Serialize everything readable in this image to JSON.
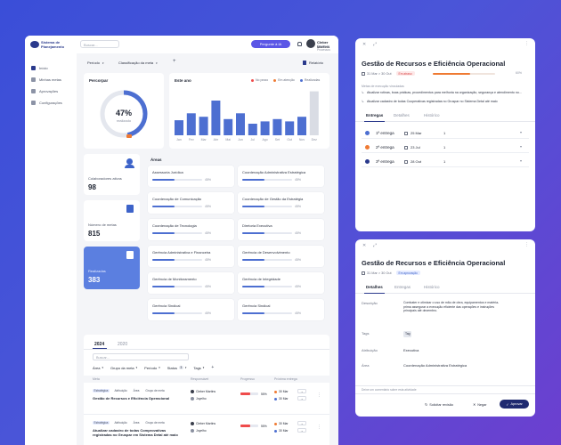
{
  "sidebar": {
    "logo_text": "Sistema de Planejamento",
    "items": [
      {
        "label": "Início"
      },
      {
        "label": "Minhas metas"
      },
      {
        "label": "Aprovações"
      },
      {
        "label": "Configurações"
      }
    ]
  },
  "topbar": {
    "search_placeholder": "Buscar...",
    "ai_button": "Pergunte à IA",
    "user_name": "Cleber Martins",
    "user_role": "Gestor de Processos"
  },
  "filters": {
    "period": "Período",
    "classification": "Classificação da meta",
    "add": "+",
    "report": "Relatório"
  },
  "overview": {
    "title": "Percorpar",
    "percent_label": "47%",
    "percent_sub": "realizado",
    "progress": 0.47,
    "bars_title": "Este ano",
    "legend": [
      "No prazo",
      "Em atenção",
      "Realizadas"
    ],
    "months": [
      "Jan",
      "Fev",
      "Mar",
      "Abr",
      "Mai",
      "Jun",
      "Jul",
      "Ago",
      "Set",
      "Out",
      "Nov",
      "Dez"
    ],
    "values": [
      13,
      19,
      16,
      30,
      14,
      19,
      10,
      12,
      14,
      12,
      16,
      38
    ]
  },
  "stats": {
    "collaborators_label": "Colaboradores ativos",
    "collaborators_value": "98",
    "goals_label": "Número de metas",
    "goals_value": "815",
    "done_label": "Realizadas",
    "done_value": "383"
  },
  "areas": {
    "title": "Áreas",
    "items": [
      {
        "name": "Assessoria Jurídica",
        "pct": "45%",
        "v": 0.45
      },
      {
        "name": "Coordenação Administrativa Estratégica",
        "pct": "45%",
        "v": 0.45
      },
      {
        "name": "Coordenação de Comunicação",
        "pct": "45%",
        "v": 0.45
      },
      {
        "name": "Coordenação de Gestão da Estratégia",
        "pct": "45%",
        "v": 0.45
      },
      {
        "name": "Coordenação de Tecnologia",
        "pct": "45%",
        "v": 0.45
      },
      {
        "name": "Diretoria Executiva",
        "pct": "45%",
        "v": 0.45
      },
      {
        "name": "Gerência Administrativa e Financeira",
        "pct": "45%",
        "v": 0.45
      },
      {
        "name": "Gerência de Desenvolvimento",
        "pct": "45%",
        "v": 0.45
      },
      {
        "name": "Gerência de Monitoramento",
        "pct": "45%",
        "v": 0.45
      },
      {
        "name": "Gerência de Integridade",
        "pct": "45%",
        "v": 0.45
      },
      {
        "name": "Gerência Sindical",
        "pct": "45%",
        "v": 0.45
      },
      {
        "name": "Gerência Sindical",
        "pct": "45%",
        "v": 0.45
      }
    ]
  },
  "goals": {
    "year_tabs": [
      "2024",
      "2020"
    ],
    "search_placeholder": "Buscar...",
    "filters": [
      "Área",
      "Grupo da meta",
      "Período",
      "Status",
      "Tags"
    ],
    "status_count": "3",
    "columns": [
      "Meta",
      "Responsável",
      "Progresso",
      "Próxima entrega"
    ],
    "rows": [
      {
        "tags": [
          "Estratégica",
          "Atribuição",
          "Área",
          "Grupo de meta"
        ],
        "title": "Gestão de Recursos e Eficiência Operacional",
        "people": [
          "Cleber Martins",
          "Joyelho"
        ],
        "progress": "55%",
        "progress_v": 0.55,
        "next": [
          "30 Mar",
          "30 Mar"
        ]
      },
      {
        "tags": [
          "Estratégica",
          "Atribuição",
          "Área",
          "Grupo de meta"
        ],
        "title": "Atualizar cadastro de todas Comprovativas registradas no Gruspar em Sistema Detal até maio",
        "people": [
          "Cleber Martins",
          "Joyelho"
        ],
        "progress": "55%",
        "progress_v": 0.55,
        "next": [
          "30 Mar",
          "30 Mar"
        ]
      }
    ]
  },
  "detail1": {
    "title": "Gestão de Recursos e Eficiência Operacional",
    "date": "31 Mar > 30 Out",
    "status": "Em atraso",
    "progress_pct": "60%",
    "progress_v": 0.6,
    "checklist_title": "Metas de execução vinculadas",
    "checklist": [
      "Atualizar rotinas, boas práticas, procedimentos para melhoria na organização, segurança e atendimento no...",
      "Atualizar cadastro de todas Cooperativas registradas no Gruspar no Sistema Detal até maio"
    ],
    "tabs": [
      "Entregas",
      "Detalhes",
      "Histórico"
    ],
    "deliveries": [
      {
        "label": "1ª entrega",
        "date": "25 Mar",
        "count": "1",
        "color": "#4d6fd1"
      },
      {
        "label": "2ª entrega",
        "date": "23 Jul",
        "count": "1",
        "color": "#ef7a33"
      },
      {
        "label": "3ª entrega",
        "date": "28 Out",
        "count": "1",
        "color": "#2a3a8c"
      }
    ]
  },
  "detail2": {
    "title": "Gestão de Recursos e Eficiência Operacional",
    "date": "31 Mar > 30 Out",
    "status": "Em aprovação",
    "tabs": [
      "Detalhes",
      "Entregas",
      "Histórico"
    ],
    "fields": [
      {
        "k": "Descrição",
        "v": "Combater e otimizar o uso de mão de obra, equipamentos e matéria-prima assegurar a execução eficiente das operações e instruções principais até dezembro."
      },
      {
        "k": "Tags",
        "v": "Tag"
      },
      {
        "k": "Atribuição",
        "v": "Executiva"
      },
      {
        "k": "Área",
        "v": "Coordenação Administrativa Estratégica"
      }
    ],
    "comment_placeholder": "Deixe um comentário sobre esta atividade",
    "actions": [
      "Solicitar revisão",
      "Negar",
      "Aprovar"
    ]
  }
}
